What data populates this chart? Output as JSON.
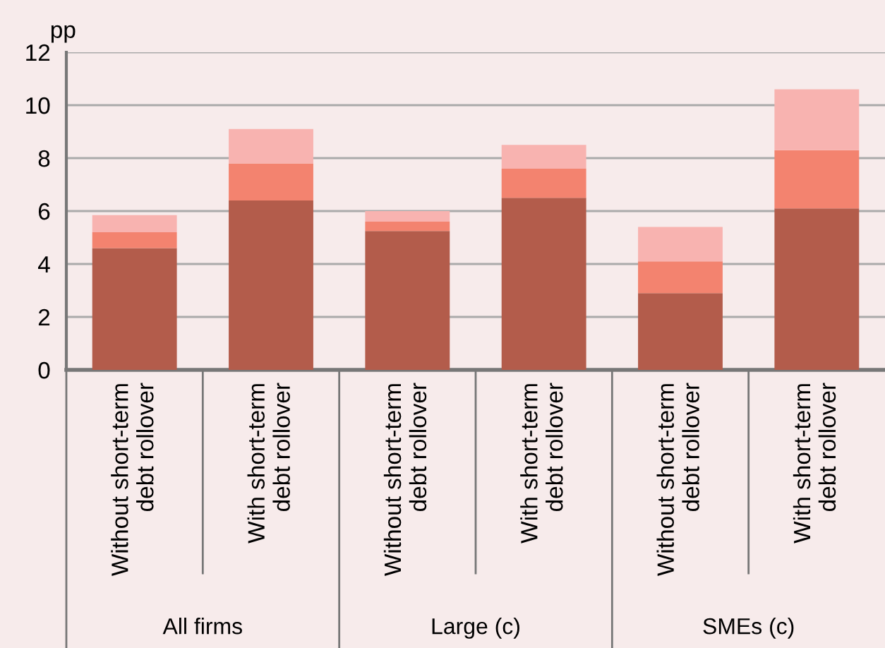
{
  "chart_data": {
    "type": "bar",
    "stacked": true,
    "ylabel": "pp",
    "categories": [
      "Without short-term\ndebt rollover",
      "With short-term\ndebt rollover",
      "Without short-term\ndebt rollover",
      "With short-term\ndebt rollover",
      "Without short-term\ndebt rollover",
      "With short-term\ndebt rollover"
    ],
    "series": [
      {
        "color": "#b35c4b",
        "values": [
          4.6,
          6.4,
          5.25,
          6.5,
          2.9,
          6.1
        ]
      },
      {
        "color": "#f3836f",
        "values": [
          0.6,
          1.4,
          0.35,
          1.1,
          1.2,
          2.2
        ]
      },
      {
        "color": "#f8b3b0",
        "values": [
          0.65,
          1.3,
          0.4,
          0.9,
          1.3,
          2.3
        ]
      }
    ],
    "annotations": [
      "All firms",
      "Large (c)",
      "SMEs (c)"
    ],
    "ylim": [
      0,
      12
    ],
    "yticks": [
      0,
      2,
      4,
      6,
      8,
      10,
      12
    ],
    "grid": "y",
    "legend": false
  }
}
